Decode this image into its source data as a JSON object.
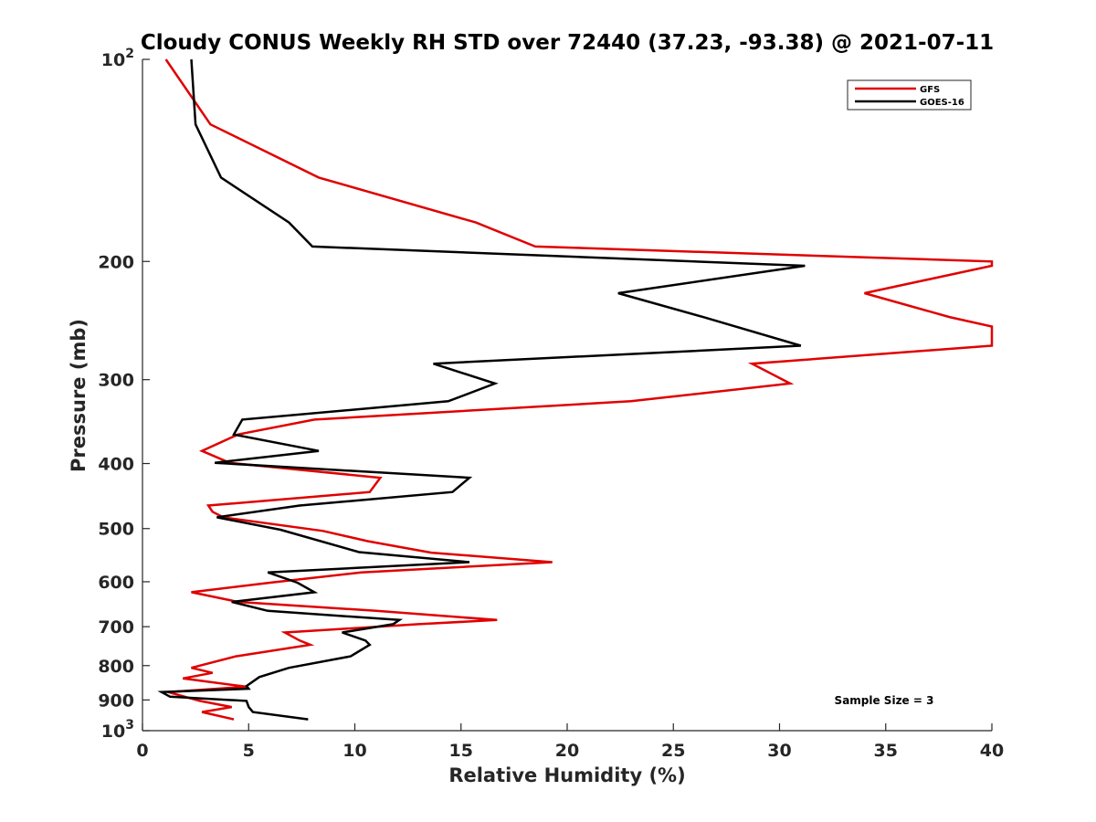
{
  "chart_data": {
    "type": "line",
    "title": "Cloudy CONUS Weekly RH STD over 72440 (37.23, -93.38) @ 2021-07-11",
    "xlabel": "Relative Humidity (%)",
    "ylabel": "Pressure (mb)",
    "xlim": [
      0,
      40
    ],
    "ylim": [
      100,
      1000
    ],
    "yscale": "log",
    "y_reversed": true,
    "grid": false,
    "legend_position": "top-right",
    "x_ticks": [
      "0",
      "5",
      "10",
      "15",
      "20",
      "25",
      "30",
      "35",
      "40"
    ],
    "x_tick_values": [
      0,
      5,
      10,
      15,
      20,
      25,
      30,
      35,
      40
    ],
    "y_ticks": [
      {
        "value": 100,
        "base": "10",
        "exp": "2"
      },
      {
        "value": 200,
        "label": "200"
      },
      {
        "value": 300,
        "label": "300"
      },
      {
        "value": 400,
        "label": "400"
      },
      {
        "value": 500,
        "label": "500"
      },
      {
        "value": 600,
        "label": "600"
      },
      {
        "value": 700,
        "label": "700"
      },
      {
        "value": 800,
        "label": "800"
      },
      {
        "value": 900,
        "label": "900"
      },
      {
        "value": 1000,
        "base": "10",
        "exp": "3"
      }
    ],
    "series": [
      {
        "name": "GFS",
        "color": "#e00000",
        "points": [
          [
            1.1,
            100
          ],
          [
            3.2,
            125
          ],
          [
            8.3,
            150
          ],
          [
            15.7,
            175
          ],
          [
            18.5,
            190
          ],
          [
            40,
            200
          ],
          [
            40,
            203
          ],
          [
            34,
            223
          ],
          [
            38,
            242
          ],
          [
            40,
            250
          ],
          [
            40,
            267
          ],
          [
            28.7,
            284
          ],
          [
            30.5,
            304
          ],
          [
            23,
            323
          ],
          [
            8.1,
            344
          ],
          [
            4.5,
            362
          ],
          [
            2.8,
            383
          ],
          [
            4.1,
            399
          ],
          [
            11.2,
            420
          ],
          [
            10.7,
            441
          ],
          [
            3.1,
            462
          ],
          [
            3.3,
            472
          ],
          [
            3.8,
            481
          ],
          [
            8.5,
            504
          ],
          [
            10.6,
            522
          ],
          [
            13.6,
            543
          ],
          [
            19.3,
            561
          ],
          [
            10.3,
            581
          ],
          [
            6,
            602
          ],
          [
            2.3,
            622
          ],
          [
            4.5,
            643
          ],
          [
            11,
            663
          ],
          [
            16.7,
            684
          ],
          [
            13,
            694
          ],
          [
            6.7,
            714
          ],
          [
            7.4,
            734
          ],
          [
            7.9,
            745
          ],
          [
            4.4,
            775
          ],
          [
            2.3,
            806
          ],
          [
            3.3,
            820
          ],
          [
            1.9,
            836
          ],
          [
            4.9,
            860
          ],
          [
            1.2,
            876
          ],
          [
            2.7,
            903
          ],
          [
            4.2,
            922
          ],
          [
            2.8,
            938
          ],
          [
            4.3,
            962
          ]
        ]
      },
      {
        "name": "GOES-16",
        "color": "#000000",
        "points": [
          [
            2.3,
            100
          ],
          [
            2.5,
            125
          ],
          [
            3.7,
            150
          ],
          [
            6.9,
            175
          ],
          [
            8,
            190
          ],
          [
            31.2,
            203
          ],
          [
            22.4,
            223
          ],
          [
            26.4,
            242
          ],
          [
            31,
            267
          ],
          [
            13.7,
            284
          ],
          [
            16.6,
            304
          ],
          [
            14.4,
            323
          ],
          [
            4.7,
            344
          ],
          [
            4.3,
            362
          ],
          [
            8.3,
            383
          ],
          [
            3.4,
            399
          ],
          [
            15.4,
            420
          ],
          [
            14.6,
            441
          ],
          [
            7.4,
            462
          ],
          [
            3.5,
            481
          ],
          [
            6.5,
            502
          ],
          [
            10.2,
            542
          ],
          [
            15.4,
            561
          ],
          [
            5.9,
            581
          ],
          [
            7.3,
            602
          ],
          [
            8.1,
            622
          ],
          [
            4.2,
            643
          ],
          [
            5.9,
            663
          ],
          [
            12.1,
            684
          ],
          [
            11.8,
            694
          ],
          [
            9.4,
            714
          ],
          [
            10.5,
            734
          ],
          [
            10.7,
            745
          ],
          [
            9.8,
            775
          ],
          [
            6.9,
            806
          ],
          [
            5.5,
            832
          ],
          [
            4.9,
            858
          ],
          [
            5.0,
            866
          ],
          [
            0.9,
            876
          ],
          [
            1.3,
            890
          ],
          [
            4.9,
            903
          ],
          [
            5.0,
            922
          ],
          [
            5.2,
            938
          ],
          [
            7.8,
            962
          ]
        ]
      }
    ],
    "annotation": "Sample Size = 3"
  }
}
